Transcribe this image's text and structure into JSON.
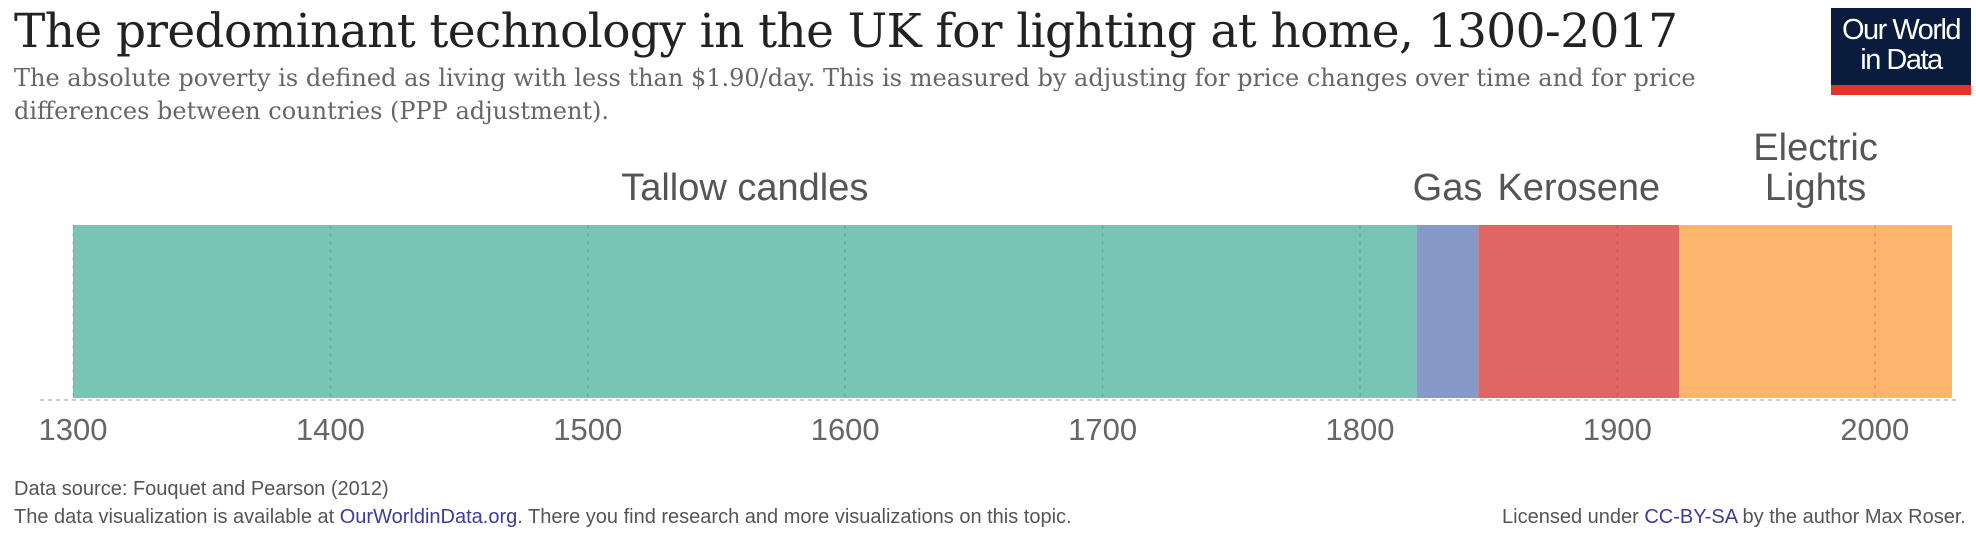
{
  "header": {
    "title": "The predominant technology in the UK for lighting at home, 1300-2017",
    "subtitle": "The absolute poverty is defined as living with less than $1.90/day. This is measured by adjusting for price changes over time and for price differences between countries (PPP adjustment)."
  },
  "logo": {
    "line1": "Our World",
    "line2": "in Data"
  },
  "chart_data": {
    "type": "bar",
    "orientation": "horizontal-timeline",
    "title": "The predominant technology in the UK for lighting at home, 1300-2017",
    "xlabel": "",
    "ylabel": "",
    "xlim": [
      1300,
      2030
    ],
    "x_ticks": [
      1300,
      1400,
      1500,
      1600,
      1700,
      1800,
      1900,
      2000
    ],
    "grid": true,
    "segments": [
      {
        "name": "Tallow candles",
        "label_lines": [
          "Tallow candles"
        ],
        "start": 1300,
        "end": 1822,
        "color": "#79c4b4"
      },
      {
        "name": "Gas",
        "label_lines": [
          "Gas"
        ],
        "start": 1822,
        "end": 1846,
        "color": "#8799c9"
      },
      {
        "name": "Kerosene",
        "label_lines": [
          "Kerosene"
        ],
        "start": 1846,
        "end": 1924,
        "color": "#e06666"
      },
      {
        "name": "Electric Lights",
        "label_lines": [
          "Electric",
          "Lights"
        ],
        "start": 1924,
        "end": 2030,
        "color": "#fdb56d"
      }
    ]
  },
  "footer": {
    "source": "Data source: Fouquet and Pearson (2012)",
    "avail_pre": "The data visualization is available at ",
    "avail_link": "OurWorldinData.org",
    "avail_post": ". There you find research and more visualizations on this topic.",
    "license_pre": "Licensed under ",
    "license_link": "CC-BY-SA",
    "license_post": " by the author Max Roser."
  }
}
